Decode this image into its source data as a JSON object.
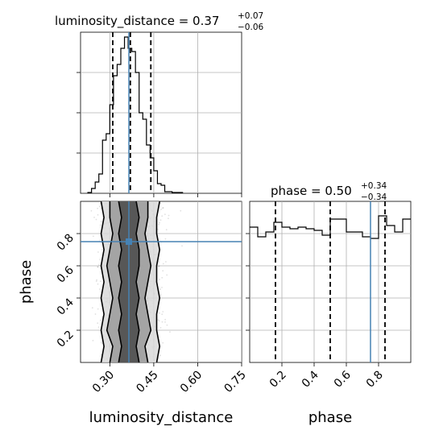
{
  "chart_data": [
    {
      "type": "histogram",
      "title": {
        "main": "luminosity_distance = 0.37",
        "plus": "+0.07",
        "minus": "−0.06"
      },
      "xlim": [
        0.2,
        0.75
      ],
      "ylim": [
        0,
        1
      ],
      "grid": true,
      "bin_edges": [
        0.225,
        0.2375,
        0.25,
        0.2625,
        0.275,
        0.2875,
        0.3,
        0.3125,
        0.325,
        0.3375,
        0.35,
        0.3625,
        0.375,
        0.3875,
        0.4,
        0.4125,
        0.425,
        0.4375,
        0.45,
        0.4625,
        0.475,
        0.4875,
        0.5,
        0.5125,
        0.525,
        0.55
      ],
      "density": [
        0.005,
        0.03,
        0.07,
        0.12,
        0.33,
        0.37,
        0.55,
        0.73,
        0.8,
        0.9,
        0.97,
        0.9,
        0.88,
        0.75,
        0.5,
        0.46,
        0.3,
        0.22,
        0.14,
        0.06,
        0.05,
        0.01,
        0.01,
        0.005,
        0.005
      ],
      "quantiles": [
        0.31,
        0.37,
        0.44
      ],
      "truth": 0.365
    },
    {
      "type": "scatter",
      "xlabel": "luminosity_distance",
      "ylabel": "phase",
      "xlim": [
        0.2,
        0.75
      ],
      "ylim": [
        0,
        1
      ],
      "xticks": [
        "0.30",
        "0.45",
        "0.60",
        "0.75"
      ],
      "yticks": [
        "0.2",
        "0.4",
        "0.6",
        "0.8"
      ],
      "xtick_values": [
        0.3,
        0.45,
        0.6,
        0.75
      ],
      "ytick_values": [
        0.2,
        0.4,
        0.6,
        0.8
      ],
      "grid": true,
      "truth": {
        "x": 0.365,
        "y": 0.75
      },
      "contour_levels": [
        {
          "x_lo": [
            0.33,
            0.34,
            0.33,
            0.34,
            0.33,
            0.34,
            0.33,
            0.34,
            0.33,
            0.34,
            0.33
          ],
          "x_hi": [
            0.4,
            0.39,
            0.4,
            0.39,
            0.4,
            0.39,
            0.4,
            0.4,
            0.39,
            0.4,
            0.39
          ]
        },
        {
          "x_lo": [
            0.3,
            0.31,
            0.29,
            0.3,
            0.31,
            0.3,
            0.29,
            0.3,
            0.31,
            0.3,
            0.3
          ],
          "x_hi": [
            0.43,
            0.42,
            0.44,
            0.43,
            0.42,
            0.43,
            0.44,
            0.43,
            0.42,
            0.43,
            0.43
          ]
        },
        {
          "x_lo": [
            0.27,
            0.28,
            0.27,
            0.28,
            0.27,
            0.28,
            0.27,
            0.28,
            0.27,
            0.28,
            0.27
          ],
          "x_hi": [
            0.46,
            0.47,
            0.46,
            0.46,
            0.47,
            0.46,
            0.46,
            0.47,
            0.46,
            0.46,
            0.47
          ]
        }
      ],
      "contour_y": [
        0.0,
        0.1,
        0.2,
        0.3,
        0.4,
        0.5,
        0.6,
        0.7,
        0.8,
        0.9,
        1.0
      ]
    },
    {
      "type": "histogram",
      "title": {
        "main": "phase = 0.50",
        "plus": "+0.34",
        "minus": "−0.34"
      },
      "xlabel": "phase",
      "xlim": [
        0,
        1
      ],
      "ylim": [
        0,
        1
      ],
      "xticks": [
        "0.2",
        "0.4",
        "0.6",
        "0.8"
      ],
      "xtick_values": [
        0.2,
        0.4,
        0.6,
        0.8
      ],
      "grid": true,
      "bin_edges": [
        0,
        0.05,
        0.1,
        0.15,
        0.2,
        0.25,
        0.3,
        0.35,
        0.4,
        0.45,
        0.5,
        0.55,
        0.6,
        0.65,
        0.7,
        0.75,
        0.8,
        0.85,
        0.9,
        0.95,
        1.0
      ],
      "density": [
        0.84,
        0.78,
        0.81,
        0.87,
        0.84,
        0.83,
        0.84,
        0.83,
        0.82,
        0.79,
        0.89,
        0.89,
        0.81,
        0.81,
        0.78,
        0.77,
        0.91,
        0.85,
        0.81,
        0.89
      ],
      "quantiles": [
        0.16,
        0.5,
        0.84
      ],
      "truth": 0.75
    }
  ]
}
